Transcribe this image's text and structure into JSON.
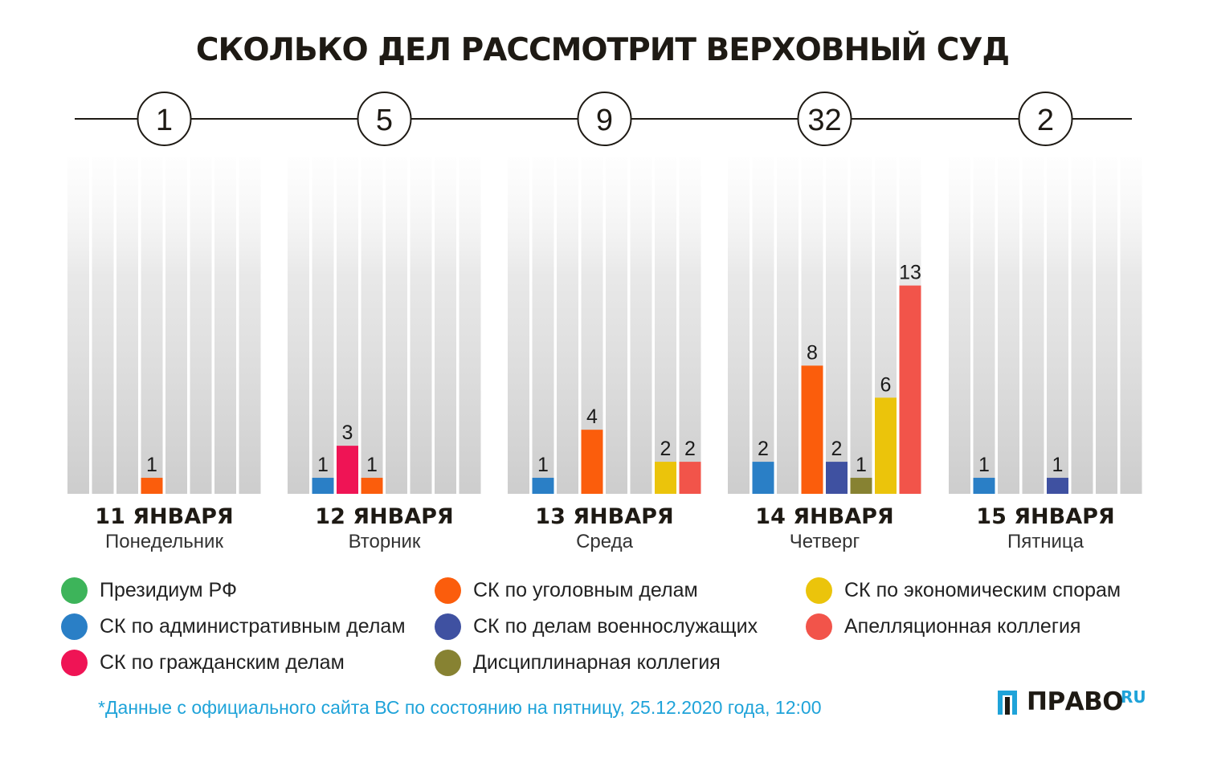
{
  "title": "СКОЛЬКО ДЕЛ РАССМОТРИТ ВЕРХОВНЫЙ СУД",
  "chart_data": {
    "type": "bar",
    "title": "СКОЛЬКО ДЕЛ РАССМОТРИТ ВЕРХОВНЫЙ СУД",
    "ylim": [
      0,
      22
    ],
    "grid": false,
    "legend_position": "bottom",
    "days": [
      {
        "date": "11 ЯНВАРЯ",
        "weekday": "Понедельник",
        "total": "1",
        "values": [
          0,
          0,
          0,
          1,
          0,
          0,
          0,
          0
        ]
      },
      {
        "date": "12 ЯНВАРЯ",
        "weekday": "Вторник",
        "total": "5",
        "values": [
          0,
          1,
          3,
          1,
          0,
          0,
          0,
          0
        ]
      },
      {
        "date": "13 ЯНВАРЯ",
        "weekday": "Среда",
        "total": "9",
        "values": [
          0,
          1,
          0,
          4,
          0,
          0,
          2,
          2
        ]
      },
      {
        "date": "14 ЯНВАРЯ",
        "weekday": "Четверг",
        "total": "32",
        "values": [
          0,
          2,
          0,
          8,
          2,
          1,
          6,
          13
        ]
      },
      {
        "date": "15 ЯНВАРЯ",
        "weekday": "Пятница",
        "total": "2",
        "values": [
          0,
          1,
          0,
          0,
          1,
          0,
          0,
          0
        ]
      }
    ],
    "series": [
      {
        "name": "Президиум РФ",
        "color": "#3db45a"
      },
      {
        "name": "СК по административным делам",
        "color": "#2a7fc6"
      },
      {
        "name": "СК по гражданским делам",
        "color": "#ef1455"
      },
      {
        "name": "СК по уголовным делам",
        "color": "#fb5d0c"
      },
      {
        "name": "СК по делам военнослужащих",
        "color": "#3f51a1"
      },
      {
        "name": "Дисциплинарная коллегия",
        "color": "#878232"
      },
      {
        "name": "СК по экономическим спорам",
        "color": "#ebc40b"
      },
      {
        "name": "Апелляционная коллегия",
        "color": "#f2544a"
      }
    ]
  },
  "legend": [
    {
      "label": "Президиум РФ",
      "color": "#3db45a"
    },
    {
      "label": "СК по административным делам",
      "color": "#2a7fc6"
    },
    {
      "label": "СК по гражданским делам",
      "color": "#ef1455"
    },
    {
      "label": "СК по уголовным делам",
      "color": "#fb5d0c"
    },
    {
      "label": "СК по делам военнослужащих",
      "color": "#3f51a1"
    },
    {
      "label": "Дисциплинарная коллегия",
      "color": "#878232"
    },
    {
      "label": "СК по экономическим спорам",
      "color": "#ebc40b"
    },
    {
      "label": "Апелляционная коллегия",
      "color": "#f2544a"
    }
  ],
  "footnote": "*Данные с официального сайта ВС по состоянию на пятницу, 25.12.2020 года, 12:00",
  "logo": {
    "text": "ПРАВО",
    "suffix": "RU"
  }
}
